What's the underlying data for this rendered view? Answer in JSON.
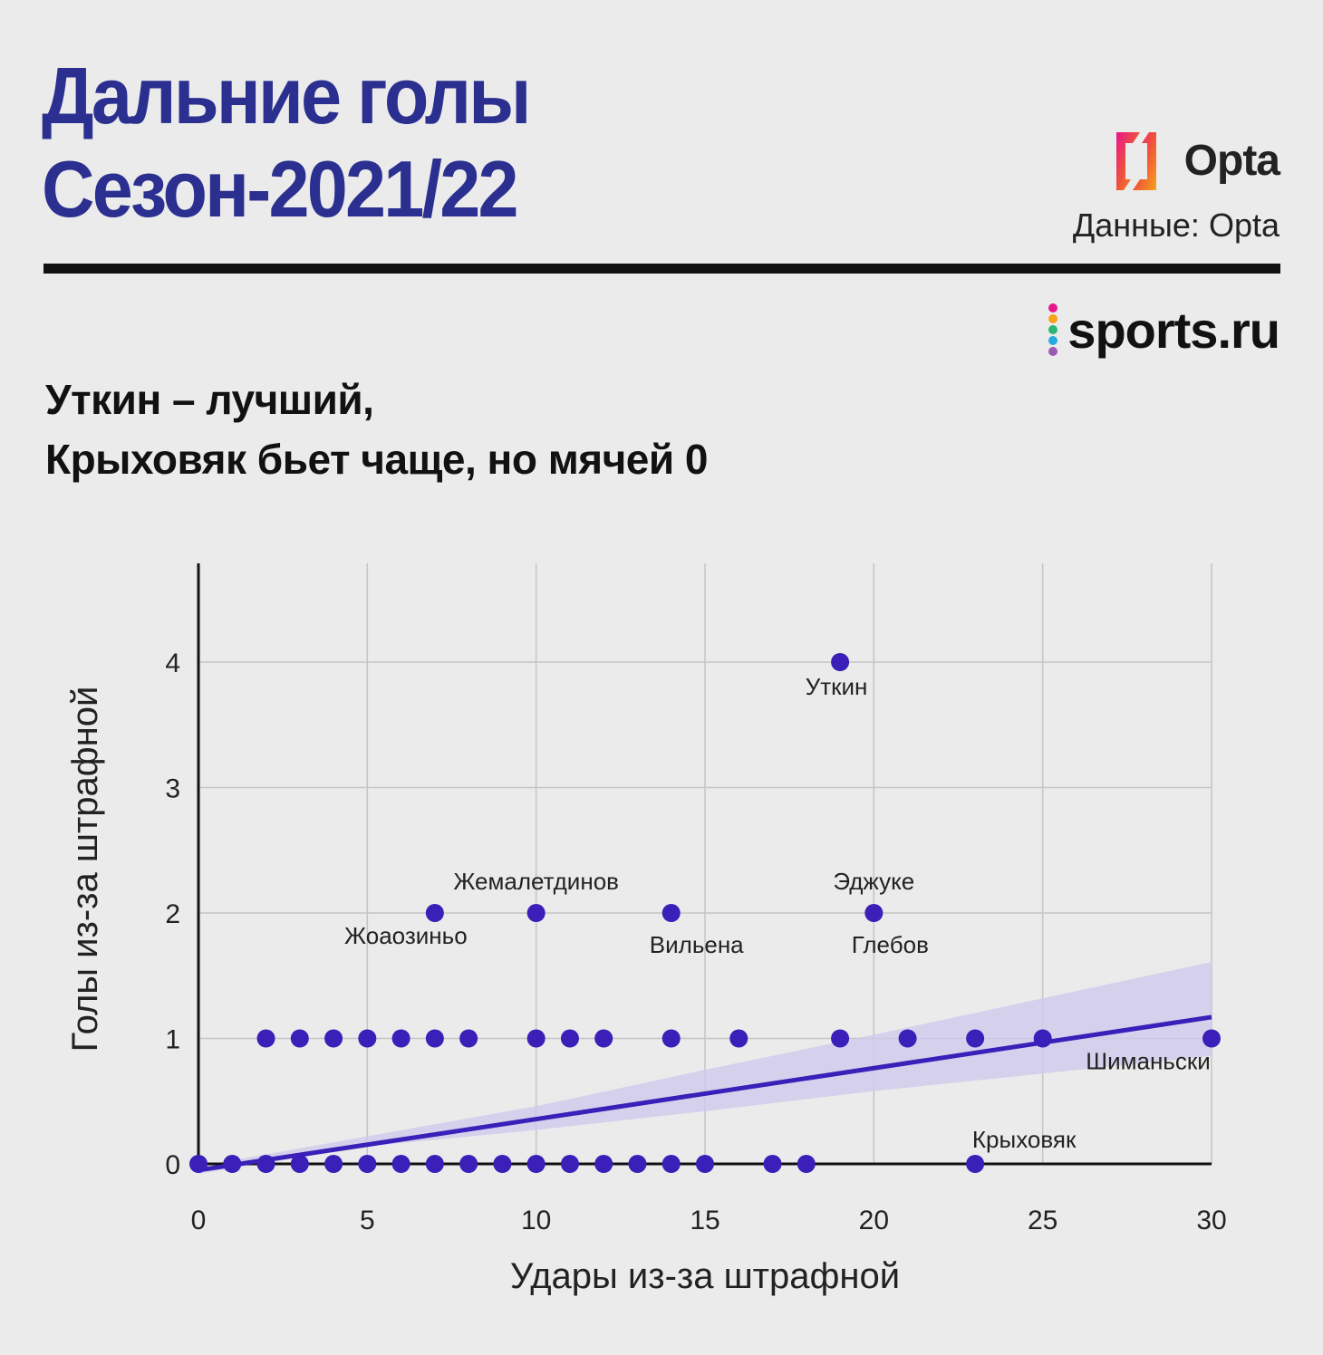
{
  "header": {
    "title_line1": "Дальние голы",
    "title_line2": "Сезон-2021/22",
    "opta_logo": "Opta",
    "data_credit": "Данные: Opta",
    "sports_logo": "sports.ru",
    "subtitle_line1": "Уткин – лучший,",
    "subtitle_line2": "Крыховяк бьет чаще, но мячей 0"
  },
  "colors": {
    "title": "#2b2f8f",
    "point": "#3a1fb8",
    "trend": "#3a1fb8",
    "band": "#cfcbed",
    "grid": "#c4c4c4",
    "axis": "#111111"
  },
  "chart_data": {
    "type": "scatter",
    "xlabel": "Удары из-за штрафной",
    "ylabel": "Голы из-за штрафной",
    "xlim": [
      0,
      30
    ],
    "ylim": [
      0,
      4.8
    ],
    "xticks": [
      0,
      5,
      10,
      15,
      20,
      25,
      30
    ],
    "yticks": [
      0,
      1,
      2,
      3,
      4
    ],
    "grid": true,
    "points": [
      {
        "x": 0,
        "y": 0
      },
      {
        "x": 1,
        "y": 0
      },
      {
        "x": 2,
        "y": 0
      },
      {
        "x": 3,
        "y": 0
      },
      {
        "x": 4,
        "y": 0
      },
      {
        "x": 5,
        "y": 0
      },
      {
        "x": 6,
        "y": 0
      },
      {
        "x": 7,
        "y": 0
      },
      {
        "x": 8,
        "y": 0
      },
      {
        "x": 9,
        "y": 0
      },
      {
        "x": 10,
        "y": 0
      },
      {
        "x": 11,
        "y": 0
      },
      {
        "x": 12,
        "y": 0
      },
      {
        "x": 13,
        "y": 0
      },
      {
        "x": 14,
        "y": 0
      },
      {
        "x": 15,
        "y": 0
      },
      {
        "x": 17,
        "y": 0
      },
      {
        "x": 18,
        "y": 0
      },
      {
        "x": 23,
        "y": 0,
        "label": "Крыховяк",
        "label_pos": "above-right"
      },
      {
        "x": 2,
        "y": 1
      },
      {
        "x": 3,
        "y": 1
      },
      {
        "x": 4,
        "y": 1
      },
      {
        "x": 5,
        "y": 1
      },
      {
        "x": 6,
        "y": 1
      },
      {
        "x": 7,
        "y": 1
      },
      {
        "x": 8,
        "y": 1
      },
      {
        "x": 10,
        "y": 1
      },
      {
        "x": 11,
        "y": 1
      },
      {
        "x": 12,
        "y": 1
      },
      {
        "x": 14,
        "y": 1
      },
      {
        "x": 16,
        "y": 1
      },
      {
        "x": 19,
        "y": 1
      },
      {
        "x": 21,
        "y": 1
      },
      {
        "x": 23,
        "y": 1
      },
      {
        "x": 25,
        "y": 1
      },
      {
        "x": 30,
        "y": 1,
        "label": "Шиманьски",
        "label_pos": "below-left"
      },
      {
        "x": 7,
        "y": 2,
        "label": "Жоаозиньо",
        "label_pos": "below-left"
      },
      {
        "x": 10,
        "y": 2,
        "label": "Жемалетдинов",
        "label_pos": "above"
      },
      {
        "x": 14,
        "y": 2,
        "label": "Вильена",
        "label_pos": "below-right"
      },
      {
        "x": 20,
        "y": 2,
        "label": "Эджуке",
        "label_pos": "above"
      },
      {
        "x": 20,
        "y": 2,
        "label": "Глебов",
        "label_pos": "below-right"
      },
      {
        "x": 19,
        "y": 4,
        "label": "Уткин",
        "label_pos": "below"
      }
    ],
    "trend_line": {
      "x": [
        0,
        30
      ],
      "y": [
        -0.05,
        1.17
      ]
    },
    "confidence_band": {
      "x": [
        0,
        5,
        10,
        15,
        20,
        25,
        30
      ],
      "upper": [
        -0.02,
        0.22,
        0.46,
        0.75,
        1.03,
        1.32,
        1.61
      ],
      "lower": [
        -0.08,
        0.14,
        0.27,
        0.42,
        0.58,
        0.72,
        0.86
      ]
    }
  }
}
